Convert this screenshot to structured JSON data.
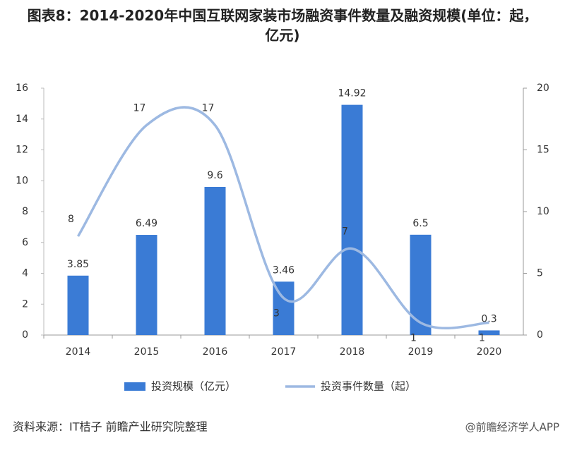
{
  "chart_data": {
    "type": "bar",
    "title": "图表8：2014-2020年中国互联网家装市场融资事件数量及融资规模(单位：起，亿元)",
    "categories": [
      "2014",
      "2015",
      "2016",
      "2017",
      "2018",
      "2019",
      "2020"
    ],
    "series": [
      {
        "name": "投资规模（亿元）",
        "color": "#3a7bd5",
        "values": [
          3.85,
          6.49,
          9.6,
          3.46,
          14.92,
          6.5,
          0.3
        ]
      },
      {
        "name": "投资事件数量（起）",
        "color": "#9db9e2",
        "type": "line",
        "axis": "y2",
        "values": [
          8,
          17,
          17,
          3,
          7,
          1,
          1
        ]
      }
    ],
    "ylim": [
      0,
      16
    ],
    "yticks": [
      0,
      2,
      4,
      6,
      8,
      10,
      12,
      14,
      16
    ],
    "y2lim": [
      0,
      20
    ],
    "y2ticks": [
      0,
      5,
      10,
      15,
      20
    ],
    "legend": "bottom",
    "source": "资料来源：IT桔子 前瞻产业研究院整理",
    "credit": "@前瞻经济学人APP"
  }
}
